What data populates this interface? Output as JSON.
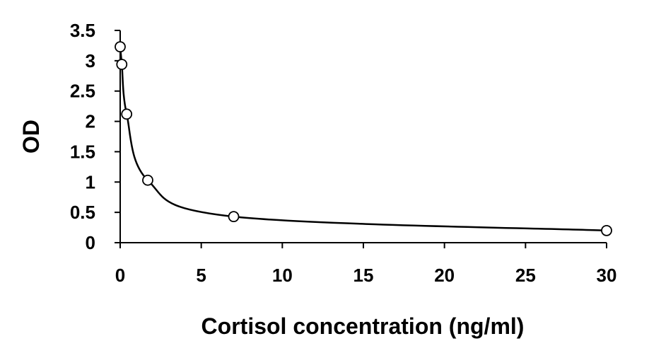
{
  "chart_data": {
    "type": "scatter",
    "title": "",
    "xlabel": "Cortisol concentration (ng/ml)",
    "ylabel": "OD",
    "xlim": [
      0,
      30
    ],
    "ylim": [
      0,
      3.5
    ],
    "x_ticks": [
      "0",
      "5",
      "10",
      "15",
      "20",
      "25",
      "30"
    ],
    "y_ticks": [
      "0",
      "0.5",
      "1",
      "1.5",
      "2",
      "2.5",
      "3",
      "3.5"
    ],
    "grid": false,
    "legend": "none",
    "series": [
      {
        "x": [
          0,
          0.1,
          0.4,
          1.7,
          7,
          30
        ],
        "y": [
          3.23,
          2.94,
          2.12,
          1.03,
          0.43,
          0.2
        ],
        "marker": "open-circle",
        "fit_line": "smooth"
      }
    ],
    "colors": {
      "line": "#000000",
      "marker_fill": "#ffffff",
      "marker_edge": "#000000"
    }
  }
}
